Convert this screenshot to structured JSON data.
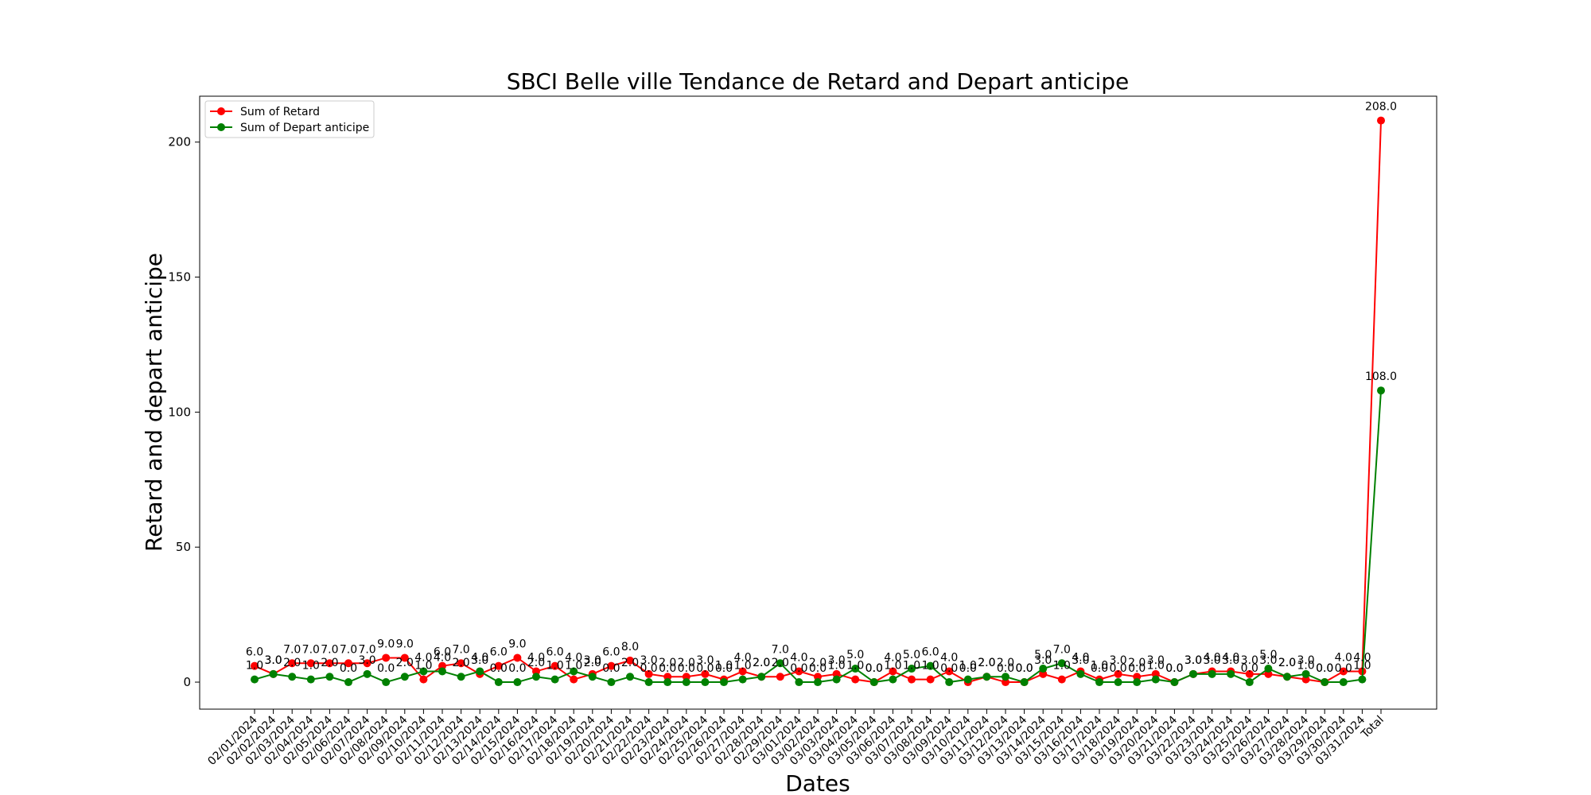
{
  "chart_data": {
    "type": "line",
    "title": "SBCI Belle ville Tendance de Retard and Depart anticipe",
    "xlabel": "Dates",
    "ylabel": "Retard and depart anticipe",
    "ylim": [
      -10,
      217
    ],
    "yticks": [
      0,
      50,
      100,
      150,
      200
    ],
    "legend_position": "top-left",
    "categories": [
      "02/01/2024",
      "02/02/2024",
      "02/03/2024",
      "02/04/2024",
      "02/05/2024",
      "02/06/2024",
      "02/07/2024",
      "02/08/2024",
      "02/09/2024",
      "02/10/2024",
      "02/11/2024",
      "02/12/2024",
      "02/13/2024",
      "02/14/2024",
      "02/15/2024",
      "02/16/2024",
      "02/17/2024",
      "02/18/2024",
      "02/19/2024",
      "02/20/2024",
      "02/21/2024",
      "02/22/2024",
      "02/23/2024",
      "02/24/2024",
      "02/25/2024",
      "02/26/2024",
      "02/27/2024",
      "02/28/2024",
      "02/29/2024",
      "03/01/2024",
      "03/02/2024",
      "03/03/2024",
      "03/04/2024",
      "03/05/2024",
      "03/06/2024",
      "03/07/2024",
      "03/08/2024",
      "03/09/2024",
      "03/10/2024",
      "03/11/2024",
      "03/12/2024",
      "03/13/2024",
      "03/14/2024",
      "03/15/2024",
      "03/16/2024",
      "03/17/2024",
      "03/18/2024",
      "03/19/2024",
      "03/20/2024",
      "03/21/2024",
      "03/22/2024",
      "03/23/2024",
      "03/24/2024",
      "03/25/2024",
      "03/26/2024",
      "03/27/2024",
      "03/28/2024",
      "03/29/2024",
      "03/30/2024",
      "03/31/2024",
      "Total"
    ],
    "series": [
      {
        "name": "Sum of Retard",
        "color": "#ff0000",
        "values": [
          6,
          3,
          7,
          7,
          7,
          7,
          7,
          9,
          9,
          1,
          6,
          7,
          3,
          6,
          9,
          4,
          6,
          1,
          3,
          6,
          8,
          3,
          2,
          2,
          3,
          1,
          4,
          2,
          2,
          4,
          2,
          3,
          1,
          0,
          4,
          1,
          1,
          4,
          0,
          2,
          0,
          0,
          3,
          1,
          4,
          1,
          3,
          2,
          3,
          0,
          3,
          4,
          4,
          3,
          3,
          2,
          1,
          0,
          4,
          4,
          208
        ]
      },
      {
        "name": "Sum of Depart anticipe",
        "color": "#008000",
        "values": [
          1,
          3,
          2,
          1,
          2,
          0,
          3,
          0,
          2,
          4,
          4,
          2,
          4,
          0,
          0,
          2,
          1,
          4,
          2,
          0,
          2,
          0,
          0,
          0,
          0,
          0,
          1,
          2,
          7,
          0,
          0,
          1,
          5,
          0,
          1,
          5,
          6,
          0,
          1,
          2,
          2,
          0,
          5,
          7,
          3,
          0,
          0,
          0,
          1,
          0,
          3,
          3,
          3,
          0,
          5,
          2,
          3,
          0,
          0,
          1,
          108
        ]
      }
    ]
  }
}
